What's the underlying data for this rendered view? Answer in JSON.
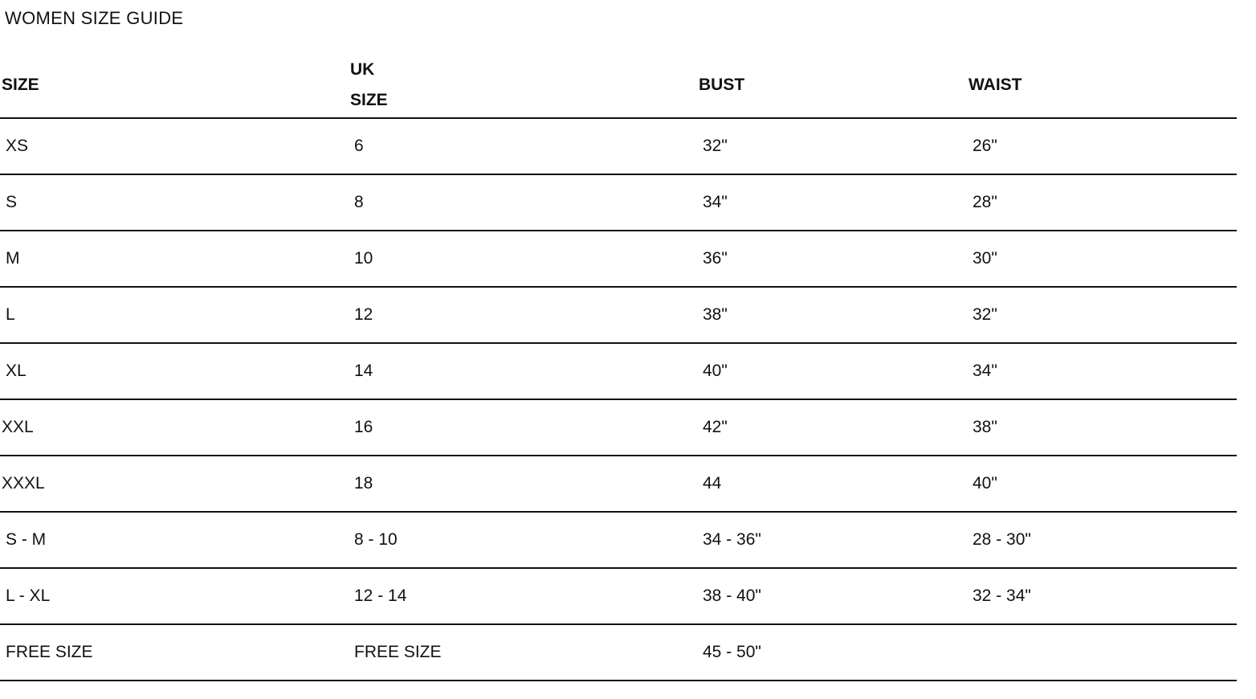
{
  "title": "WOMEN SIZE GUIDE",
  "table": {
    "headers": [
      "SIZE",
      "UK SIZE",
      "BUST",
      "WAIST"
    ],
    "rows": [
      [
        "XS",
        "6",
        "32\"",
        "26\""
      ],
      [
        "S",
        "8",
        "34\"",
        "28\""
      ],
      [
        "M",
        "10",
        "36\"",
        "30\""
      ],
      [
        "L",
        "12",
        "38\"",
        "32\""
      ],
      [
        "XL",
        "14",
        "40\"",
        "34\""
      ],
      [
        "XXL",
        "16",
        "42\"",
        "38\""
      ],
      [
        "XXXL",
        "18",
        "44",
        "40\""
      ],
      [
        "S - M",
        "8 - 10",
        "34 - 36\"",
        "28 - 30\""
      ],
      [
        "L - XL",
        "12 - 14",
        "38 - 40\"",
        "32 - 34\""
      ],
      [
        "FREE SIZE",
        "FREE SIZE",
        "45 - 50\"",
        ""
      ]
    ]
  }
}
